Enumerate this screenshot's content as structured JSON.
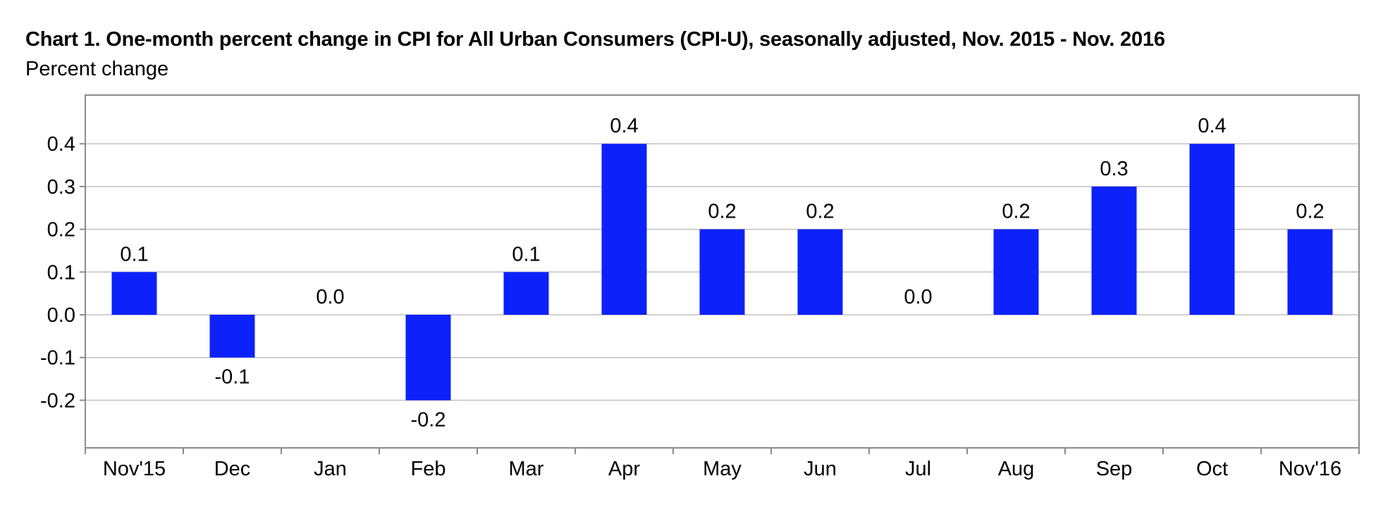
{
  "chart_data": {
    "type": "bar",
    "title": "Chart 1. One-month percent change in CPI for All Urban Consumers (CPI-U), seasonally adjusted, Nov. 2015 - Nov. 2016",
    "ylabel": "Percent change",
    "xlabel": "",
    "categories": [
      "Nov'15",
      "Dec",
      "Jan",
      "Feb",
      "Mar",
      "Apr",
      "May",
      "Jun",
      "Jul",
      "Aug",
      "Sep",
      "Oct",
      "Nov'16"
    ],
    "values": [
      0.1,
      -0.1,
      0.0,
      -0.2,
      0.1,
      0.4,
      0.2,
      0.2,
      0.0,
      0.2,
      0.3,
      0.4,
      0.2
    ],
    "value_labels": [
      "0.1",
      "-0.1",
      "0.0",
      "-0.2",
      "0.1",
      "0.4",
      "0.2",
      "0.2",
      "0.0",
      "0.2",
      "0.3",
      "0.4",
      "0.2"
    ],
    "y_ticks": [
      0.4,
      0.3,
      0.2,
      0.1,
      0.0,
      -0.1,
      -0.2
    ],
    "y_tick_labels": [
      "0.4",
      "0.3",
      "0.2",
      "0.1",
      "0.0",
      "-0.1",
      "-0.2"
    ],
    "ylim": [
      -0.31,
      0.5
    ],
    "grid": true,
    "legend": "none",
    "bar_color": "#0d21fb",
    "grid_color": "#c0c0c0",
    "frame_color": "#8c8c8c"
  }
}
